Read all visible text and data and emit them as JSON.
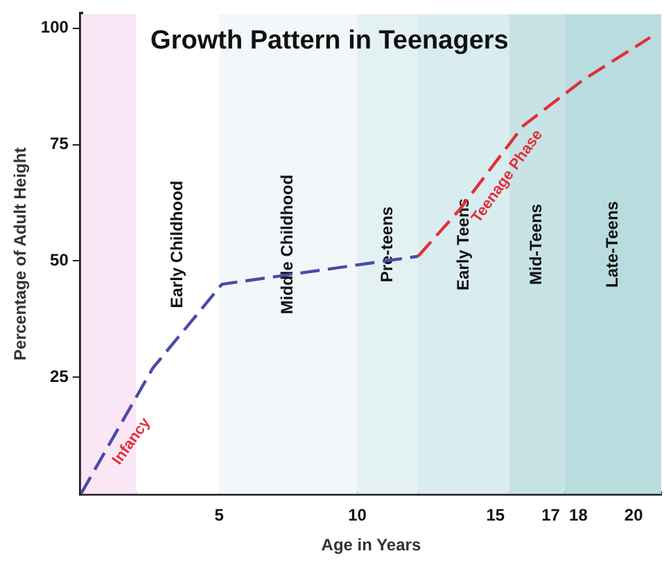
{
  "chart_data": {
    "type": "line",
    "title": "Growth Pattern in Teenagers",
    "xlabel": "Age in Years",
    "ylabel": "Percentage of Adult Height",
    "xlim": [
      0,
      21
    ],
    "ylim": [
      0,
      103
    ],
    "xticks": [
      5,
      10,
      15,
      17,
      18,
      20
    ],
    "yticks": [
      25,
      50,
      75,
      100
    ],
    "grid": false,
    "legend": false,
    "marker": "none",
    "series": [
      {
        "color": "#4a4aa8",
        "line_style": "dashed",
        "x": [
          0,
          2.6,
          5.1,
          12.2
        ],
        "values": [
          0,
          27,
          45,
          51
        ]
      },
      {
        "color": "#e0303a",
        "line_style": "dashed",
        "x": [
          12.2,
          13.7,
          16,
          18.2,
          20.6
        ],
        "values": [
          51,
          61,
          79,
          89,
          98
        ]
      }
    ],
    "bands": [
      {
        "axis": "x",
        "from": 0,
        "to": 2,
        "label": null,
        "color": "#fbe6f6"
      },
      {
        "axis": "x",
        "from": 2,
        "to": 5,
        "label": "Early Childhood",
        "color": "#ffffff"
      },
      {
        "axis": "x",
        "from": 5,
        "to": 10,
        "label": "Middle Childhood",
        "color": "#f2f8fa"
      },
      {
        "axis": "x",
        "from": 10,
        "to": 12.2,
        "label": "Pre-teens",
        "color": "#e4f1f3"
      },
      {
        "axis": "x",
        "from": 12.2,
        "to": 15.5,
        "label": "Early Teens",
        "color": "#d9ecef"
      },
      {
        "axis": "x",
        "from": 15.5,
        "to": 17.5,
        "label": "Mid-Teens",
        "color": "#c8e3e6"
      },
      {
        "axis": "x",
        "from": 17.5,
        "to": 21,
        "label": "Late-Teens",
        "color": "#b9dcdf"
      }
    ],
    "annotations": [
      {
        "text": "Infancy",
        "x": 1.3,
        "y": 13.5
      },
      {
        "text": "Teenage Phase",
        "x": 14.9,
        "y": 70.4
      }
    ]
  }
}
